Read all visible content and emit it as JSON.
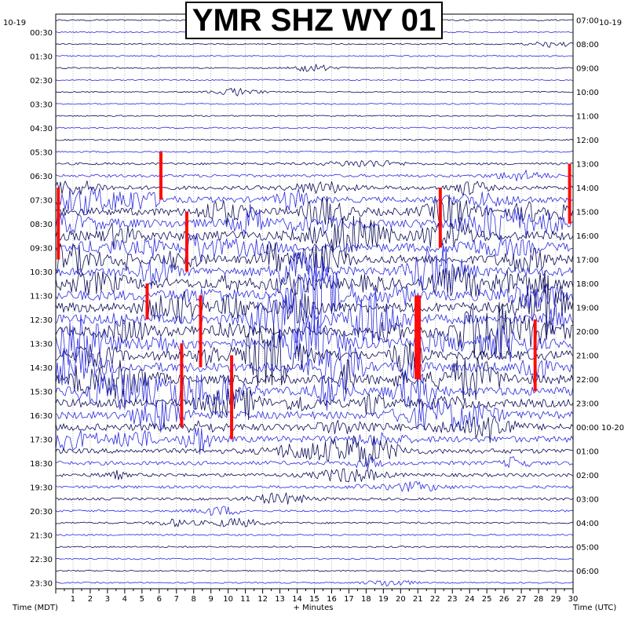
{
  "chart_data": {
    "type": "seismogram",
    "title": "YMR SHZ WY 01",
    "date_left": "10-19",
    "date_right": "10-19",
    "date_right_rollover": "10-20",
    "xlabel": "+ Minutes",
    "left_axis_label": "Time (MDT)",
    "right_axis_label": "Time (UTC)",
    "x_ticks": [
      "1",
      "2",
      "3",
      "4",
      "5",
      "6",
      "7",
      "8",
      "9",
      "10",
      "11",
      "12",
      "13",
      "14",
      "15",
      "16",
      "17",
      "18",
      "19",
      "20",
      "21",
      "22",
      "23",
      "24",
      "25",
      "26",
      "27",
      "28",
      "29",
      "30"
    ],
    "x_range": [
      0,
      30
    ],
    "rows_per_hour": 2,
    "left_labels": [
      "00:30",
      "01:30",
      "02:30",
      "03:30",
      "04:30",
      "05:30",
      "06:30",
      "07:30",
      "08:30",
      "09:30",
      "10:30",
      "11:30",
      "12:30",
      "13:30",
      "14:30",
      "15:30",
      "16:30",
      "17:30",
      "18:30",
      "19:30",
      "20:30",
      "21:30",
      "22:30",
      "23:30"
    ],
    "right_labels": [
      "07:00",
      "08:00",
      "09:00",
      "10:00",
      "11:00",
      "12:00",
      "13:00",
      "14:00",
      "15:00",
      "16:00",
      "17:00",
      "18:00",
      "19:00",
      "20:00",
      "21:00",
      "22:00",
      "23:00",
      "00:00",
      "01:00",
      "02:00",
      "03:00",
      "04:00",
      "05:00",
      "06:00"
    ],
    "rollover_row_label": "00:00",
    "trace_colors": [
      "#0a0a55",
      "#2a2ae0"
    ],
    "clip_color": "#ff0000",
    "activity_profile": [
      0.02,
      0.02,
      0.02,
      0.03,
      0.02,
      0.02,
      0.02,
      0.02,
      0.02,
      0.03,
      0.03,
      0.04,
      0.12,
      0.18,
      0.3,
      0.5,
      0.7,
      0.85,
      0.9,
      0.85,
      0.8,
      0.85,
      0.9,
      0.95,
      0.95,
      0.9,
      0.95,
      0.95,
      0.9,
      0.9,
      0.85,
      0.8,
      0.75,
      0.7,
      0.62,
      0.55,
      0.4,
      0.3,
      0.25,
      0.18,
      0.14,
      0.1,
      0.08,
      0.06,
      0.05,
      0.04,
      0.03,
      0.03
    ]
  }
}
